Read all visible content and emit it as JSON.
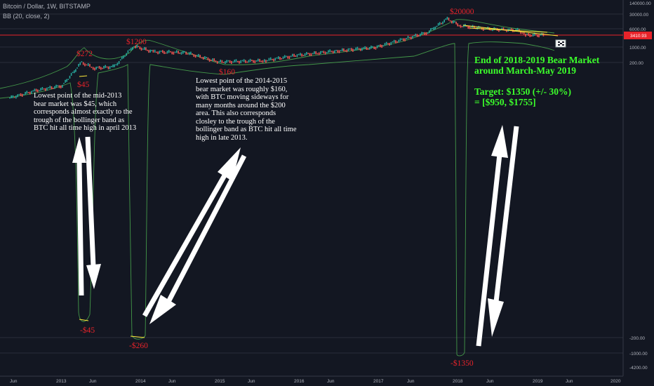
{
  "header": {
    "title": "Bitcoin / Dollar, 1W, BITSTAMP",
    "indicator": "BB (20, close, 2)"
  },
  "price_tag": "3410.93",
  "chart_data": {
    "type": "line",
    "title": "",
    "y_axis_labels": [
      "140000.00",
      "30000.00",
      "6000.00",
      "1000.00",
      "200.00",
      "-200.00",
      "-1000.00",
      "-4200.00"
    ],
    "x_axis_labels": [
      "Jun",
      "2013",
      "Jun",
      "2014",
      "Jun",
      "2015",
      "Jun",
      "2016",
      "Jun",
      "2017",
      "Jun",
      "2018",
      "Jun",
      "2019",
      "Jun",
      "2020"
    ],
    "series": [
      {
        "points": [
          [
            "2012-05",
            5
          ],
          [
            "2012-09",
            11
          ],
          [
            "2013-01",
            18
          ],
          [
            "2013-04",
            200
          ],
          [
            "2013-06",
            110
          ],
          [
            "2013-09",
            130
          ],
          [
            "2013-12",
            1100
          ],
          [
            "2014-03",
            600
          ],
          [
            "2014-08",
            550
          ],
          [
            "2015-01",
            210
          ],
          [
            "2015-08",
            240
          ],
          [
            "2016-01",
            420
          ],
          [
            "2016-07",
            650
          ],
          [
            "2017-01",
            950
          ],
          [
            "2017-06",
            2500
          ],
          [
            "2017-09",
            4500
          ],
          [
            "2017-12",
            18000
          ],
          [
            "2018-02",
            9000
          ],
          [
            "2018-06",
            6500
          ],
          [
            "2018-11",
            5500
          ],
          [
            "2018-12",
            3400
          ],
          [
            "2019-03",
            3410.93
          ]
        ]
      }
    ],
    "price_labels": [
      "$272",
      "$45",
      "$1200",
      "$160",
      "$20000"
    ],
    "band_trough_labels": [
      "-$45",
      "-$260",
      "-$1350"
    ],
    "annotations": [
      "Lowest point of the mid-2013 bear market was $45, which corresponds almost exactly to the trough of the bollinger band as BTC hit all time high in april 2013",
      "Lowest point of the 2014-2015 bear market was roughly $160, with BTC moving sideways for many months around the $200 area. This also corresponds closley to the trough of the bollinger band as BTC hit all time high in late 2013.",
      "End of 2018-2019 Bear Market around March-May 2019",
      "Target: $1350 (+/- 30%)",
      "= [$950, $1755]"
    ],
    "colors": {
      "price_up": "#26a69a",
      "price_down": "#ef5350",
      "band": "#4caf50",
      "labels": "#e8232a",
      "target_text": "#3cff2b",
      "resistance": "#e8232a",
      "trend": "#ffeb3b"
    }
  },
  "notes": {
    "note_2013": [
      "Lowest point of the mid-2013",
      "bear market was $45, which",
      "corresponds almost exactly to the",
      "trough of the bollinger band as",
      "BTC hit all time high in april 2013"
    ],
    "note_2015": [
      "Lowest point of the 2014-2015",
      "bear market was roughly $160,",
      "with BTC moving sideways for",
      "many months around the $200",
      "area. This also corresponds",
      "closley to the trough of the",
      "bollinger band as BTC hit all time",
      "high in late 2013."
    ],
    "target": [
      "End of 2018-2019 Bear Market",
      "around March-May 2019",
      "",
      "Target: $1350 (+/- 30%)",
      "= [$950, $1755]"
    ]
  }
}
